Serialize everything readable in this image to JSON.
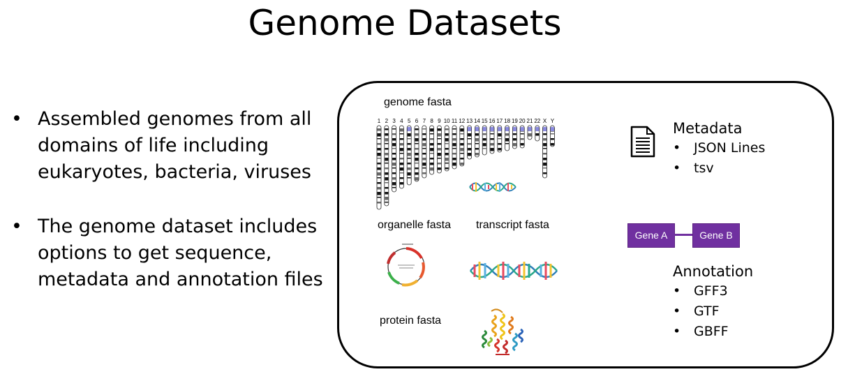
{
  "title": "Genome Datasets",
  "bullets": [
    "Assembled genomes from all domains of life including eukaryotes, bacteria, viruses",
    "The genome dataset includes options to get sequence, metadata and annotation files"
  ],
  "bullet_char": "•",
  "panel": {
    "labels": {
      "genome_fasta": "genome fasta",
      "organelle_fasta": "organelle fasta",
      "transcript_fasta": "transcript fasta",
      "protein_fasta": "protein fasta"
    },
    "chromosomes": [
      "1",
      "2",
      "3",
      "4",
      "5",
      "6",
      "7",
      "8",
      "9",
      "10",
      "11",
      "12",
      "13",
      "14",
      "15",
      "16",
      "17",
      "18",
      "19",
      "20",
      "21",
      "22",
      "X",
      "Y"
    ],
    "metadata": {
      "heading": "Metadata",
      "items": [
        "JSON Lines",
        "tsv"
      ]
    },
    "genes": {
      "a": "Gene A",
      "b": "Gene B"
    },
    "annotation": {
      "heading": "Annotation",
      "items": [
        "GFF3",
        "GTF",
        "GBFF"
      ]
    }
  },
  "colors": {
    "gene_box": "#7030a0",
    "gene_text": "#ffffff"
  },
  "icons": [
    "document-icon",
    "chromosome-ideogram-icon",
    "dna-helix-icon",
    "plasmid-map-icon",
    "protein-structure-icon"
  ]
}
